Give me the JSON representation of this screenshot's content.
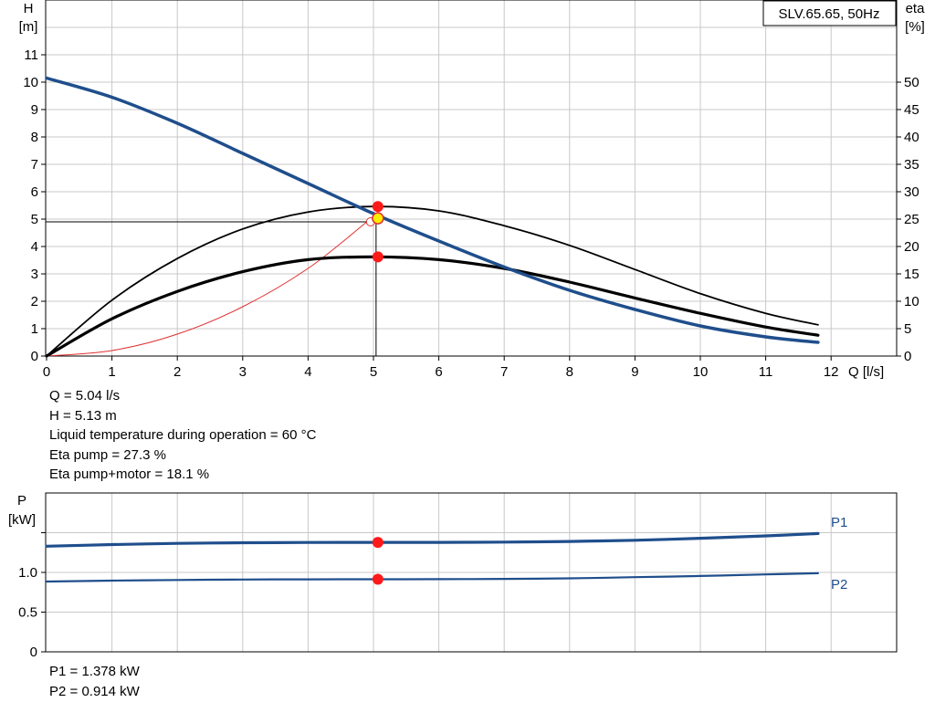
{
  "title_box": "SLV.65.65, 50Hz",
  "chart_data": [
    {
      "type": "line",
      "name": "head-efficiency",
      "xlabel": "Q [l/s]",
      "ylabel_left": [
        "H",
        "[m]"
      ],
      "ylabel_right": [
        "eta",
        "[%]"
      ],
      "xlim": [
        0,
        13
      ],
      "ylim_left": [
        0,
        13
      ],
      "ylim_right": [
        0,
        65
      ],
      "x_ticks": [
        0,
        1,
        2,
        3,
        4,
        5,
        6,
        7,
        8,
        9,
        10,
        11,
        12
      ],
      "y_ticks_left": [
        0,
        1,
        2,
        3,
        4,
        5,
        6,
        7,
        8,
        9,
        10,
        11
      ],
      "y_ticks_right": [
        0,
        5,
        10,
        15,
        20,
        25,
        30,
        35,
        40,
        45,
        50
      ],
      "grid": true,
      "series": [
        {
          "key": "H",
          "axis": "left",
          "color": "#1f4e8c",
          "x": [
            0,
            1,
            2,
            3,
            4,
            5,
            6,
            7,
            8,
            9,
            10,
            11,
            11.8
          ],
          "values": [
            10.15,
            9.45,
            8.5,
            7.4,
            6.3,
            5.2,
            4.2,
            3.25,
            2.4,
            1.7,
            1.1,
            0.7,
            0.5
          ]
        },
        {
          "key": "eta_pump",
          "axis": "right",
          "color": "#000000",
          "x": [
            0,
            1,
            2,
            3,
            4,
            5,
            6,
            7,
            8,
            9,
            10,
            11,
            11.8
          ],
          "values": [
            0,
            10.2,
            17.8,
            23.2,
            26.3,
            27.3,
            26.5,
            23.8,
            20.2,
            15.8,
            11.4,
            7.8,
            5.7
          ]
        },
        {
          "key": "eta_pump_motor",
          "axis": "right",
          "color": "#000000",
          "x": [
            0,
            1,
            2,
            3,
            4,
            5,
            6,
            7,
            8,
            9,
            10,
            11,
            11.8
          ],
          "values": [
            0,
            6.8,
            11.8,
            15.4,
            17.6,
            18.1,
            17.6,
            16,
            13.5,
            10.6,
            7.8,
            5.3,
            3.8
          ]
        },
        {
          "key": "system_curve",
          "axis": "left",
          "color": "#e03030",
          "x": [
            0,
            1,
            2,
            3,
            4,
            4.9
          ],
          "values": [
            0,
            0.2,
            0.8,
            1.8,
            3.2,
            4.9
          ]
        }
      ],
      "operating_point": {
        "Q": 5.04,
        "H": 5.13,
        "eta_pump": 27.3,
        "eta_pump_motor": 18.1,
        "H_line": 4.9
      }
    },
    {
      "type": "line",
      "name": "power",
      "ylabel": [
        "P",
        "[kW]"
      ],
      "xlim": [
        0,
        13
      ],
      "ylim": [
        0,
        1.95
      ],
      "y_ticks": [
        0,
        0.5,
        1.0,
        1.5
      ],
      "y_tick_labels": [
        "0",
        "0.5",
        "1.0",
        ""
      ],
      "grid": true,
      "series": [
        {
          "key": "P1",
          "name": "P1",
          "color": "#1f4e8c",
          "x": [
            0,
            1,
            2,
            3,
            4,
            5,
            6,
            7,
            8,
            9,
            10,
            11,
            11.8
          ],
          "values": [
            1.33,
            1.35,
            1.365,
            1.373,
            1.377,
            1.378,
            1.378,
            1.382,
            1.39,
            1.405,
            1.43,
            1.46,
            1.49
          ]
        },
        {
          "key": "P2",
          "name": "P2",
          "color": "#1f4e8c",
          "x": [
            0,
            1,
            2,
            3,
            4,
            5,
            6,
            7,
            8,
            9,
            10,
            11,
            11.8
          ],
          "values": [
            0.885,
            0.897,
            0.905,
            0.91,
            0.913,
            0.914,
            0.915,
            0.918,
            0.925,
            0.94,
            0.955,
            0.975,
            0.99
          ]
        }
      ],
      "operating_point": {
        "Q": 5.04,
        "P1": 1.378,
        "P2": 0.914
      }
    }
  ],
  "info_top": [
    "Q = 5.04 l/s",
    "H = 5.13 m",
    "Liquid temperature during operation = 60 °C",
    "Eta pump = 27.3 %",
    "Eta pump+motor = 18.1 %"
  ],
  "info_bottom": [
    "P1 = 1.378 kW",
    "P2 = 0.914 kW"
  ]
}
